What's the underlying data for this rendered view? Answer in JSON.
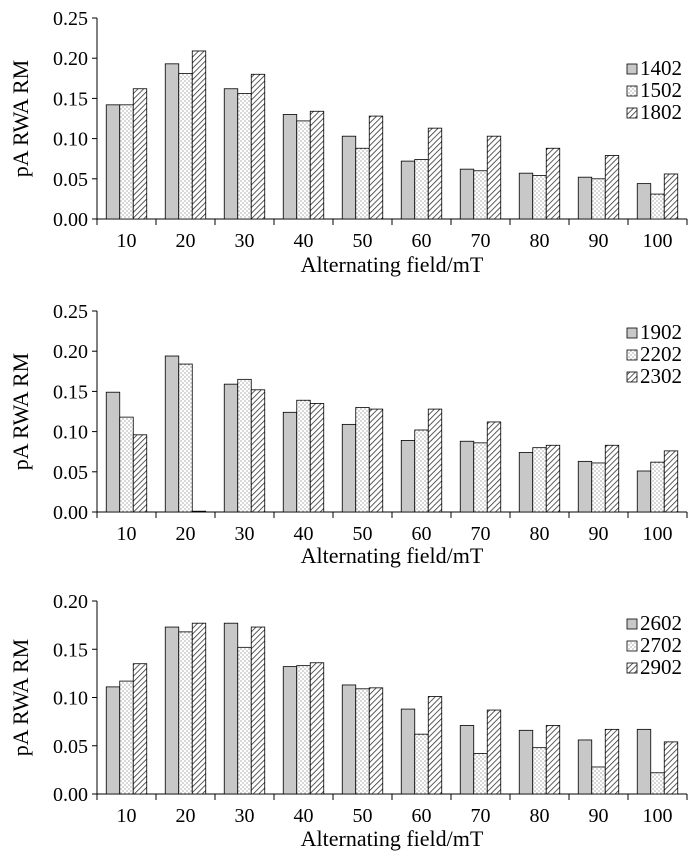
{
  "chart_data": [
    {
      "type": "bar",
      "categories": [
        "10",
        "20",
        "30",
        "40",
        "50",
        "60",
        "70",
        "80",
        "90",
        "100"
      ],
      "xlabel": "Alternating field/mT",
      "ylabel": "pA RWA RM",
      "ylim": [
        0,
        0.25
      ],
      "yticks": [
        "0.00",
        "0.05",
        "0.10",
        "0.15",
        "0.20",
        "0.25"
      ],
      "grid": false,
      "legend_position": "top-right",
      "series": [
        {
          "name": "1402",
          "pattern": "gray",
          "values": [
            0.142,
            0.193,
            0.162,
            0.13,
            0.103,
            0.072,
            0.062,
            0.057,
            0.052,
            0.044
          ]
        },
        {
          "name": "1502",
          "pattern": "dots",
          "values": [
            0.142,
            0.181,
            0.156,
            0.122,
            0.088,
            0.074,
            0.06,
            0.054,
            0.05,
            0.031
          ]
        },
        {
          "name": "1802",
          "pattern": "hatch",
          "values": [
            0.162,
            0.209,
            0.18,
            0.134,
            0.128,
            0.113,
            0.103,
            0.088,
            0.079,
            0.056
          ]
        }
      ]
    },
    {
      "type": "bar",
      "categories": [
        "10",
        "20",
        "30",
        "40",
        "50",
        "60",
        "70",
        "80",
        "90",
        "100"
      ],
      "xlabel": "Alternating field/mT",
      "ylabel": "pA RWA RM",
      "ylim": [
        0,
        0.25
      ],
      "yticks": [
        "0.00",
        "0.05",
        "0.10",
        "0.15",
        "0.20",
        "0.25"
      ],
      "grid": false,
      "legend_position": "top-right",
      "series": [
        {
          "name": "1902",
          "pattern": "gray",
          "values": [
            0.149,
            0.194,
            0.159,
            0.124,
            0.109,
            0.089,
            0.088,
            0.074,
            0.063,
            0.051
          ]
        },
        {
          "name": "2202",
          "pattern": "dots",
          "values": [
            0.118,
            0.184,
            0.165,
            0.139,
            0.13,
            0.102,
            0.086,
            0.08,
            0.061,
            0.062
          ]
        },
        {
          "name": "2302",
          "pattern": "hatch",
          "values": [
            0.096,
            0.001,
            0.152,
            0.135,
            0.128,
            0.128,
            0.112,
            0.083,
            0.083,
            0.076
          ]
        }
      ]
    },
    {
      "type": "bar",
      "categories": [
        "10",
        "20",
        "30",
        "40",
        "50",
        "60",
        "70",
        "80",
        "90",
        "100"
      ],
      "xlabel": "Alternating field/mT",
      "ylabel": "pA RWA RM",
      "ylim": [
        0,
        0.2
      ],
      "yticks": [
        "0.00",
        "0.05",
        "0.10",
        "0.15",
        "0.20"
      ],
      "grid": false,
      "legend_position": "top-right",
      "series": [
        {
          "name": "2602",
          "pattern": "gray",
          "values": [
            0.111,
            0.173,
            0.177,
            0.132,
            0.113,
            0.088,
            0.071,
            0.066,
            0.056,
            0.067
          ]
        },
        {
          "name": "2702",
          "pattern": "dots",
          "values": [
            0.117,
            0.168,
            0.152,
            0.133,
            0.109,
            0.062,
            0.042,
            0.048,
            0.028,
            0.022
          ]
        },
        {
          "name": "2902",
          "pattern": "hatch",
          "values": [
            0.135,
            0.177,
            0.173,
            0.136,
            0.11,
            0.101,
            0.087,
            0.071,
            0.067,
            0.054
          ]
        }
      ]
    }
  ]
}
